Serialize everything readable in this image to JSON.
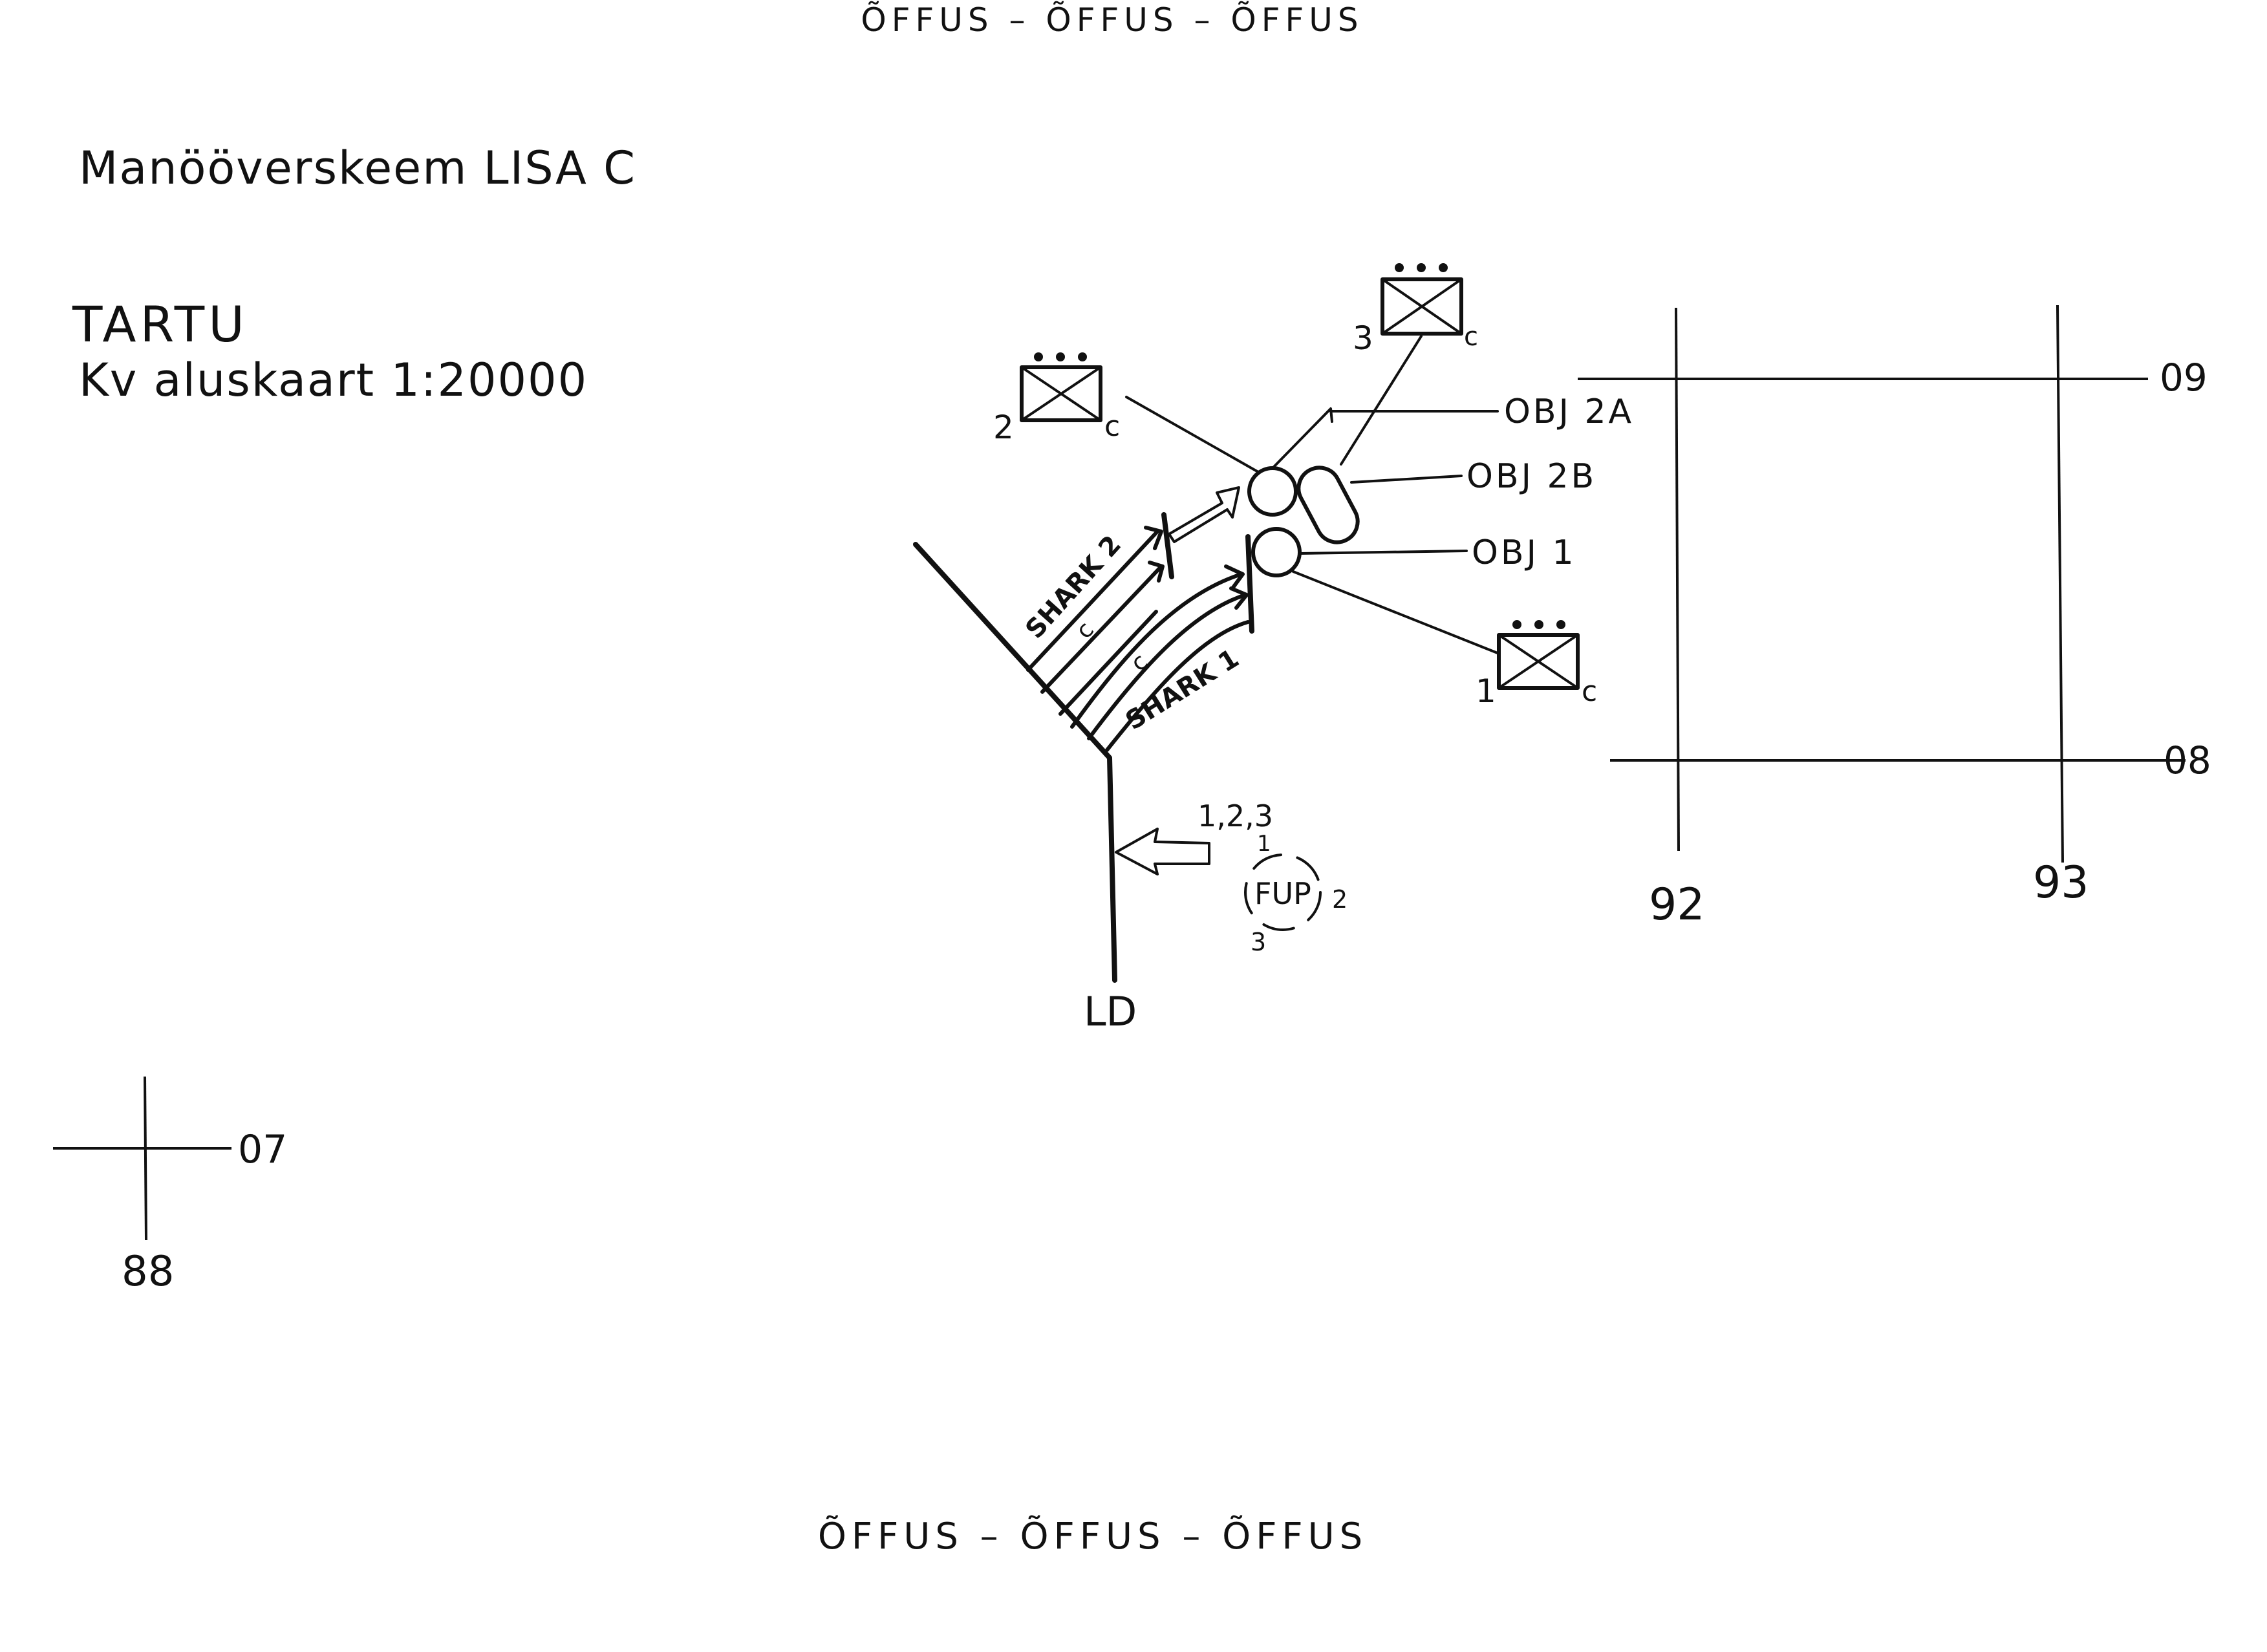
{
  "header_stamp": "ÕFFUS – ÕFFUS – ÕFFUS",
  "footer_stamp": "ÕFFUS – ÕFFUS – ÕFFUS",
  "title": "Manööverskeem LISA C",
  "location": "TARTU",
  "map_reference": "Kv aluskaart 1:20000",
  "grid_labels": {
    "east_small": "88",
    "north_small": "07",
    "east_92": "92",
    "east_93": "93",
    "north_09": "09",
    "north_08": "08"
  },
  "objectives": {
    "obj_2a": "OBJ 2A",
    "obj_2b": "OBJ 2B",
    "obj_1": "OBJ 1"
  },
  "units": {
    "unit_1": {
      "number": "1",
      "suffix": "c"
    },
    "unit_2": {
      "number": "2",
      "suffix": "c"
    },
    "unit_3": {
      "number": "3",
      "suffix": "c"
    }
  },
  "axes": {
    "shark_2": "SHARK 2",
    "shark_1": "SHARK 1",
    "shark_2_unit": "c",
    "shark_1_unit": "c"
  },
  "line_of_departure": "LD",
  "fup": {
    "label": "FUP",
    "units": "1,2,3",
    "pos_1": "1",
    "pos_2": "2",
    "pos_3": "3"
  },
  "icons": [
    "infantry-company-symbol",
    "objective-circle",
    "objective-oval",
    "axis-arrow",
    "attack-arrow",
    "hollow-arrow"
  ]
}
